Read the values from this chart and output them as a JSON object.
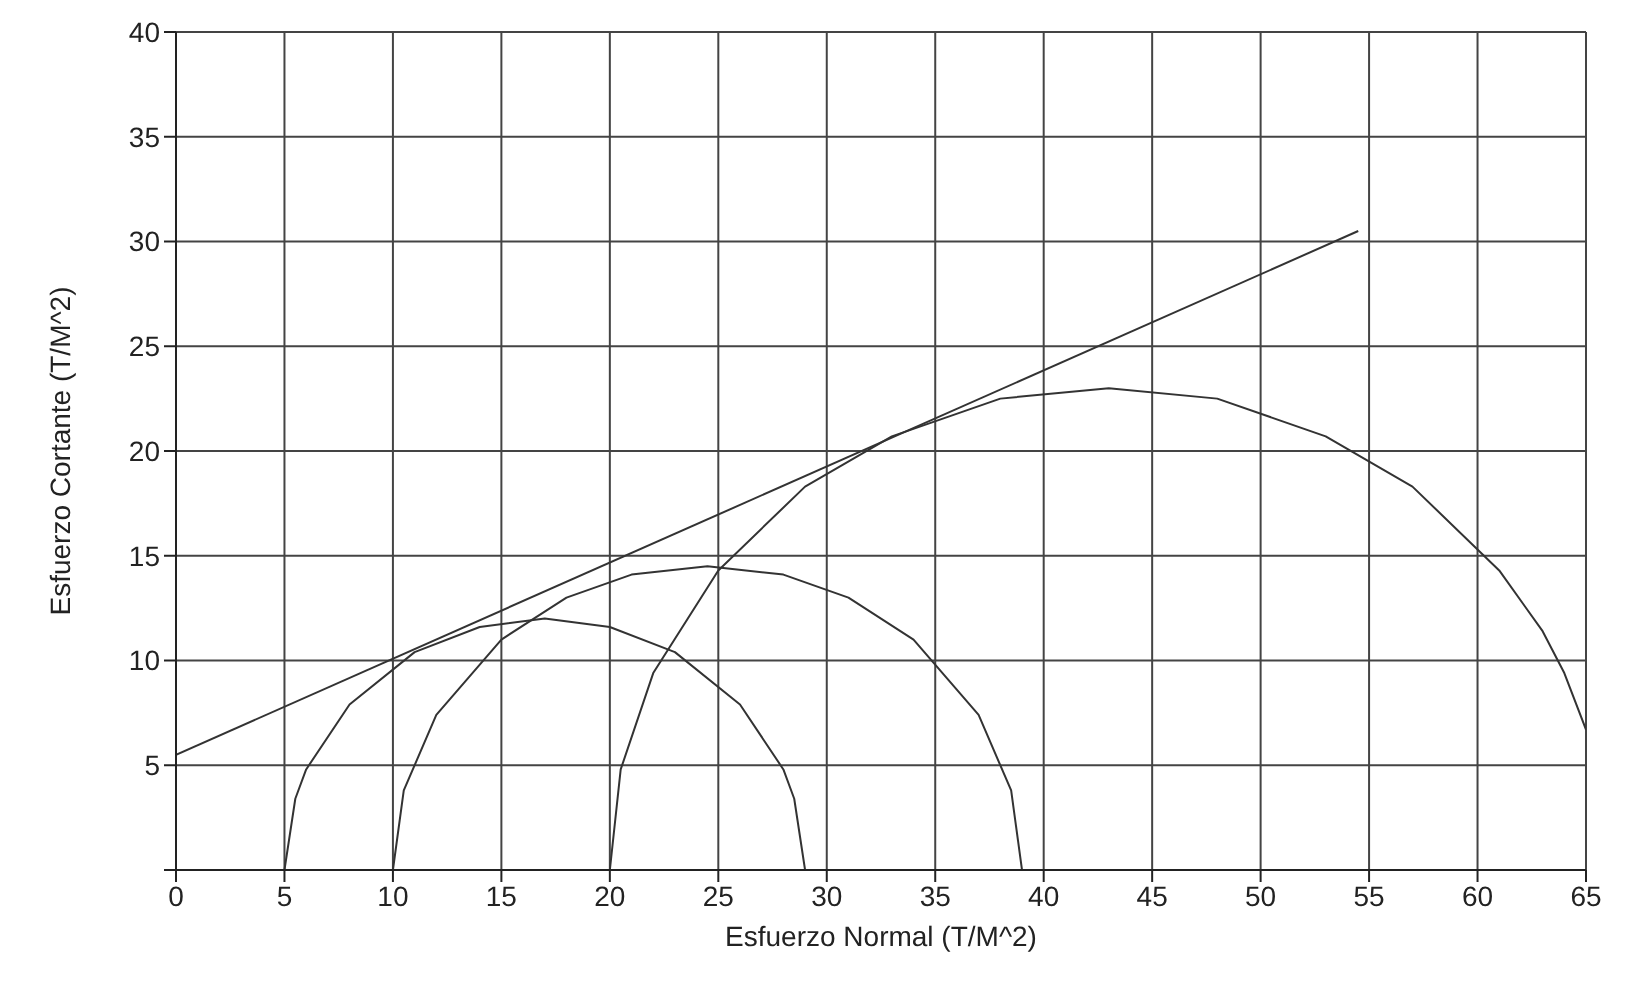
{
  "chart_data": {
    "type": "line",
    "xlabel": "Esfuerzo Normal (T/M^2)",
    "ylabel": "Esfuerzo Cortante (T/M^2)",
    "xlim": [
      0,
      65
    ],
    "xticks": [
      0,
      5,
      10,
      15,
      20,
      25,
      30,
      35,
      40,
      45,
      50,
      55,
      60,
      65
    ],
    "ylim": [
      0,
      40
    ],
    "yticks": [
      {
        "value": 0,
        "label": null
      },
      5,
      10,
      15,
      20,
      25,
      30,
      35,
      40
    ],
    "grid": true,
    "legend": false,
    "marker": "none",
    "line_style": "solid",
    "series": [
      {
        "color": "#333333",
        "x": [
          5,
          5.5,
          6,
          8,
          11,
          14,
          17,
          20,
          23,
          26,
          28,
          28.5,
          29
        ],
        "values": [
          0,
          3.4,
          4.8,
          7.9,
          10.4,
          11.6,
          12,
          11.6,
          10.4,
          7.9,
          4.8,
          3.4,
          0
        ]
      },
      {
        "color": "#333333",
        "x": [
          10,
          10.5,
          12,
          15,
          18,
          21,
          24.5,
          28,
          31,
          34,
          37,
          38.5,
          39
        ],
        "values": [
          0,
          3.8,
          7.4,
          11,
          13,
          14.1,
          14.5,
          14.1,
          13,
          11,
          7.4,
          3.8,
          0
        ]
      },
      {
        "color": "#333333",
        "x": [
          20,
          20.5,
          22,
          25,
          29,
          33,
          38,
          43,
          48,
          53,
          57,
          61,
          63,
          64,
          65
        ],
        "values": [
          0,
          4.8,
          9.4,
          14.3,
          18.3,
          20.7,
          22.5,
          23,
          22.5,
          20.7,
          18.3,
          14.3,
          11.4,
          9.4,
          6.7
        ]
      },
      {
        "color": "#333333",
        "x": [
          0,
          54.5
        ],
        "values": [
          5.5,
          30.5
        ]
      }
    ]
  }
}
